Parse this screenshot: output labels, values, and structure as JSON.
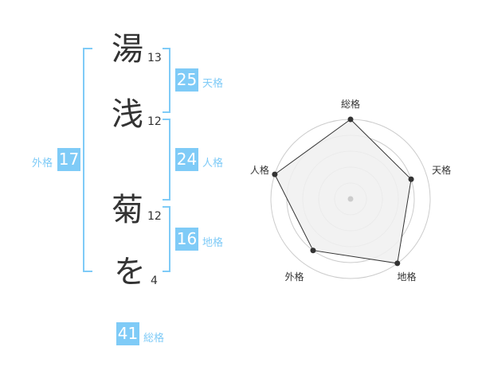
{
  "characters": [
    {
      "char": "湯",
      "strokes": "13"
    },
    {
      "char": "浅",
      "strokes": "12"
    },
    {
      "char": "菊",
      "strokes": "12"
    },
    {
      "char": "を",
      "strokes": "4"
    }
  ],
  "fortunes": {
    "tenkaku": {
      "value": "25",
      "label": "天格"
    },
    "jinkaku": {
      "value": "24",
      "label": "人格"
    },
    "chikaku": {
      "value": "16",
      "label": "地格"
    },
    "gaikaku": {
      "value": "17",
      "label": "外格"
    },
    "soukaku": {
      "value": "41",
      "label": "総格"
    }
  },
  "chart_data": {
    "type": "radar",
    "axes": [
      "総格",
      "天格",
      "地格",
      "外格",
      "人格"
    ],
    "values": [
      5,
      4,
      5,
      4,
      5
    ],
    "range": [
      0,
      5
    ],
    "colors": {
      "fill": "#f0f0f0",
      "line": "#333333",
      "grid": "#cccccc"
    }
  }
}
